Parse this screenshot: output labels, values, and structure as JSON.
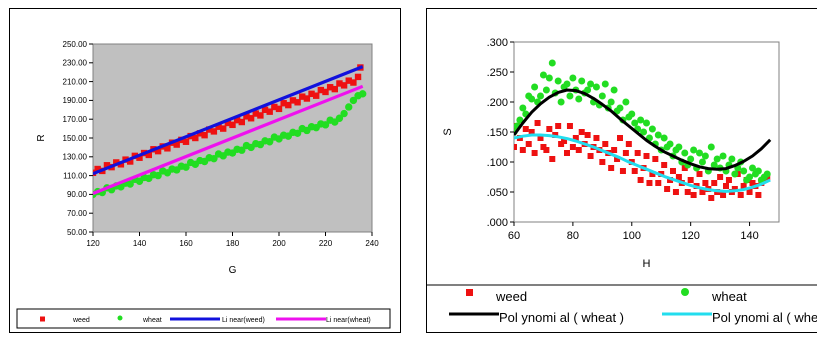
{
  "chart_data": [
    {
      "type": "scatter",
      "title": "",
      "xlabel": "G",
      "ylabel": "R",
      "xlim": [
        120,
        240
      ],
      "ylim": [
        50,
        250
      ],
      "x_ticks": [
        "120",
        "140",
        "160",
        "180",
        "200",
        "220",
        "240"
      ],
      "y_ticks": [
        "50.00",
        "70.00",
        "90.00",
        "110.00",
        "130.00",
        "150.00",
        "170.00",
        "190.00",
        "210.00",
        "230.00",
        "250.00"
      ],
      "series": [
        {
          "name": "weed",
          "kind": "points",
          "marker": "square",
          "color": "#ee1111",
          "x": [
            120,
            122,
            124,
            126,
            128,
            130,
            132,
            134,
            136,
            138,
            140,
            142,
            144,
            146,
            148,
            150,
            152,
            154,
            156,
            158,
            160,
            162,
            164,
            166,
            168,
            170,
            172,
            174,
            176,
            178,
            180,
            182,
            184,
            186,
            188,
            190,
            192,
            194,
            196,
            198,
            200,
            202,
            204,
            206,
            208,
            210,
            212,
            214,
            216,
            218,
            220,
            222,
            224,
            226,
            228,
            230,
            232,
            234,
            235
          ],
          "y": [
            113,
            117,
            115,
            121,
            119,
            124,
            122,
            127,
            125,
            131,
            129,
            134,
            132,
            138,
            136,
            141,
            139,
            145,
            143,
            148,
            146,
            152,
            150,
            155,
            153,
            159,
            157,
            162,
            160,
            166,
            164,
            169,
            167,
            173,
            171,
            176,
            174,
            180,
            178,
            183,
            181,
            187,
            185,
            190,
            188,
            194,
            192,
            197,
            195,
            201,
            199,
            204,
            202,
            208,
            206,
            211,
            209,
            215,
            225
          ]
        },
        {
          "name": "wheat",
          "kind": "points",
          "marker": "circle",
          "color": "#22dd22",
          "x": [
            120,
            122,
            124,
            126,
            128,
            130,
            132,
            134,
            136,
            138,
            140,
            142,
            144,
            146,
            148,
            150,
            152,
            154,
            156,
            158,
            160,
            162,
            164,
            166,
            168,
            170,
            172,
            174,
            176,
            178,
            180,
            182,
            184,
            186,
            188,
            190,
            192,
            194,
            196,
            198,
            200,
            202,
            204,
            206,
            208,
            210,
            212,
            214,
            216,
            218,
            220,
            222,
            224,
            226,
            228,
            230,
            232,
            234,
            236
          ],
          "y": [
            90,
            93,
            92,
            97,
            95,
            99,
            98,
            102,
            101,
            106,
            104,
            108,
            107,
            111,
            110,
            115,
            113,
            117,
            116,
            120,
            119,
            124,
            122,
            126,
            125,
            129,
            128,
            133,
            131,
            135,
            134,
            138,
            137,
            142,
            140,
            144,
            143,
            147,
            146,
            151,
            149,
            153,
            152,
            156,
            155,
            160,
            158,
            162,
            161,
            165,
            164,
            169,
            167,
            171,
            176,
            183,
            190,
            195,
            197
          ]
        },
        {
          "name": "Linear(weed)",
          "kind": "line",
          "color": "#1111dd",
          "x": [
            120,
            236
          ],
          "y": [
            112,
            226
          ]
        },
        {
          "name": "Linear(wheat)",
          "kind": "line",
          "color": "#ee11ee",
          "x": [
            120,
            236
          ],
          "y": [
            91,
            205
          ]
        }
      ],
      "legend": {
        "position": "bottom",
        "labels": [
          "weed",
          "wheat",
          "Li near(weed)",
          "Li near(wheat)"
        ]
      },
      "grid": false,
      "colors": {
        "plot_bg": "#c0c0c0",
        "frame": "#808080"
      }
    },
    {
      "type": "scatter",
      "title": "",
      "xlabel": "H",
      "ylabel": "S",
      "xlim": [
        60,
        150
      ],
      "ylim": [
        0,
        0.3
      ],
      "x_ticks": [
        "60",
        "80",
        "100",
        "120",
        "140"
      ],
      "y_ticks": [
        ".000",
        ".050",
        ".100",
        ".150",
        ".200",
        ".250",
        ".300"
      ],
      "series": [
        {
          "name": "weed",
          "kind": "points",
          "marker": "square",
          "color": "#ee1111",
          "x": [
            60,
            61,
            62,
            63,
            64,
            65,
            66,
            67,
            68,
            69,
            70,
            71,
            72,
            73,
            74,
            75,
            76,
            77,
            78,
            79,
            80,
            81,
            82,
            83,
            84,
            85,
            86,
            87,
            88,
            89,
            90,
            91,
            92,
            93,
            94,
            95,
            96,
            97,
            98,
            99,
            100,
            101,
            102,
            103,
            104,
            105,
            106,
            107,
            108,
            109,
            110,
            111,
            112,
            113,
            114,
            115,
            116,
            117,
            118,
            119,
            120,
            121,
            122,
            123,
            124,
            125,
            126,
            127,
            128,
            129,
            130,
            131,
            132,
            133,
            134,
            135,
            136,
            137,
            138,
            139,
            140,
            141,
            142,
            143,
            144,
            145,
            146
          ],
          "y": [
            0.125,
            0.16,
            0.14,
            0.12,
            0.155,
            0.13,
            0.15,
            0.115,
            0.165,
            0.14,
            0.125,
            0.12,
            0.155,
            0.105,
            0.145,
            0.16,
            0.13,
            0.135,
            0.115,
            0.16,
            0.125,
            0.14,
            0.12,
            0.15,
            0.13,
            0.145,
            0.11,
            0.125,
            0.14,
            0.12,
            0.1,
            0.13,
            0.115,
            0.09,
            0.12,
            0.105,
            0.14,
            0.085,
            0.115,
            0.13,
            0.1,
            0.085,
            0.115,
            0.07,
            0.09,
            0.11,
            0.065,
            0.08,
            0.105,
            0.065,
            0.08,
            0.095,
            0.055,
            0.07,
            0.085,
            0.05,
            0.075,
            0.065,
            0.09,
            0.05,
            0.07,
            0.045,
            0.06,
            0.08,
            0.05,
            0.065,
            0.055,
            0.04,
            0.065,
            0.05,
            0.075,
            0.045,
            0.06,
            0.07,
            0.05,
            0.055,
            0.08,
            0.045,
            0.06,
            0.07,
            0.05,
            0.065,
            0.06,
            0.045,
            0.065,
            0.07,
            0.075
          ]
        },
        {
          "name": "wheat",
          "kind": "points",
          "marker": "circle",
          "color": "#22dd22",
          "x": [
            60,
            61,
            62,
            63,
            64,
            65,
            66,
            67,
            68,
            69,
            70,
            71,
            72,
            73,
            74,
            75,
            76,
            77,
            78,
            79,
            80,
            81,
            82,
            83,
            84,
            85,
            86,
            87,
            88,
            89,
            90,
            91,
            92,
            93,
            94,
            95,
            96,
            97,
            98,
            99,
            100,
            101,
            102,
            103,
            104,
            105,
            106,
            107,
            108,
            109,
            110,
            111,
            112,
            113,
            114,
            115,
            116,
            117,
            118,
            119,
            120,
            121,
            122,
            123,
            124,
            125,
            126,
            127,
            128,
            129,
            130,
            131,
            132,
            133,
            134,
            135,
            136,
            137,
            138,
            139,
            140,
            141,
            142,
            143,
            144,
            145,
            146
          ],
          "y": [
            0.15,
            0.16,
            0.17,
            0.19,
            0.18,
            0.21,
            0.205,
            0.225,
            0.2,
            0.21,
            0.245,
            0.22,
            0.24,
            0.265,
            0.215,
            0.235,
            0.2,
            0.225,
            0.23,
            0.21,
            0.24,
            0.22,
            0.205,
            0.235,
            0.215,
            0.22,
            0.23,
            0.2,
            0.225,
            0.195,
            0.21,
            0.23,
            0.19,
            0.2,
            0.22,
            0.185,
            0.19,
            0.17,
            0.2,
            0.175,
            0.18,
            0.165,
            0.155,
            0.17,
            0.15,
            0.165,
            0.14,
            0.155,
            0.13,
            0.145,
            0.12,
            0.14,
            0.125,
            0.13,
            0.11,
            0.12,
            0.125,
            0.1,
            0.115,
            0.095,
            0.105,
            0.12,
            0.09,
            0.115,
            0.1,
            0.11,
            0.085,
            0.125,
            0.095,
            0.105,
            0.09,
            0.11,
            0.085,
            0.095,
            0.105,
            0.08,
            0.09,
            0.1,
            0.085,
            0.07,
            0.075,
            0.09,
            0.08,
            0.085,
            0.07,
            0.075,
            0.08
          ]
        },
        {
          "name": "Pol ynomi al (wheat)",
          "kind": "line",
          "color": "#000000",
          "x": [
            60,
            63,
            66,
            69,
            72,
            75,
            78,
            81,
            84,
            87,
            90,
            93,
            96,
            99,
            102,
            105,
            108,
            111,
            114,
            117,
            120,
            123,
            126,
            129,
            132,
            135,
            138,
            141,
            144,
            147
          ],
          "y": [
            0.145,
            0.165,
            0.183,
            0.197,
            0.208,
            0.216,
            0.22,
            0.219,
            0.214,
            0.206,
            0.196,
            0.185,
            0.172,
            0.16,
            0.148,
            0.136,
            0.126,
            0.117,
            0.11,
            0.103,
            0.097,
            0.092,
            0.089,
            0.088,
            0.089,
            0.094,
            0.101,
            0.11,
            0.122,
            0.137
          ]
        },
        {
          "name": "Pol ynomi al ( whea",
          "kind": "line",
          "color": "#22ddee",
          "x": [
            60,
            63,
            66,
            69,
            72,
            75,
            78,
            81,
            84,
            87,
            90,
            93,
            96,
            99,
            102,
            105,
            108,
            111,
            114,
            117,
            120,
            123,
            126,
            129,
            132,
            135,
            138,
            141,
            144,
            147
          ],
          "y": [
            0.14,
            0.143,
            0.145,
            0.145,
            0.144,
            0.142,
            0.139,
            0.135,
            0.13,
            0.125,
            0.119,
            0.113,
            0.107,
            0.1,
            0.094,
            0.088,
            0.082,
            0.076,
            0.071,
            0.066,
            0.061,
            0.057,
            0.054,
            0.052,
            0.051,
            0.052,
            0.054,
            0.058,
            0.063,
            0.07
          ]
        }
      ],
      "legend": {
        "position": "bottom",
        "labels": [
          "weed",
          "wheat",
          "Pol ynomi al ( wheat )",
          "Pol ynomi al ( whe"
        ]
      },
      "grid": false,
      "colors": {
        "plot_bg": "#ffffff",
        "frame": "#808080"
      }
    }
  ]
}
